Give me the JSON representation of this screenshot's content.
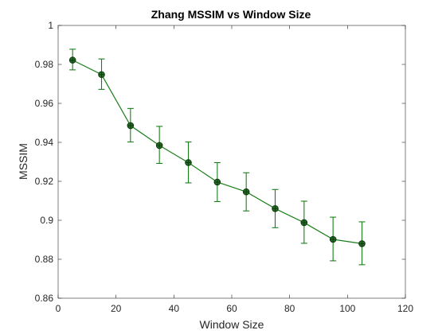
{
  "chart_data": {
    "type": "line",
    "title": "Zhang MSSIM vs Window Size",
    "xlabel": "Window Size",
    "ylabel": "MSSIM",
    "xlim": [
      0,
      120
    ],
    "ylim": [
      0.86,
      1
    ],
    "xticks": [
      0,
      20,
      40,
      60,
      80,
      100,
      120
    ],
    "yticks": [
      0.86,
      0.88,
      0.9,
      0.92,
      0.94,
      0.96,
      0.98,
      1
    ],
    "xtick_labels": [
      "0",
      "20",
      "40",
      "60",
      "80",
      "100",
      "120"
    ],
    "ytick_labels": [
      "0.86",
      "0.88",
      "0.9",
      "0.92",
      "0.94",
      "0.96",
      "0.98",
      "1"
    ],
    "grid": false,
    "series": [
      {
        "color": "#1a7f1a",
        "marker": "circle-plus",
        "error_bars": true,
        "x": [
          5,
          15,
          25,
          35,
          45,
          55,
          65,
          75,
          85,
          95,
          105
        ],
        "y": [
          0.9822,
          0.9748,
          0.9486,
          0.9384,
          0.9296,
          0.9196,
          0.9146,
          0.906,
          0.8988,
          0.8902,
          0.888
        ],
        "err_low": [
          0.9772,
          0.9672,
          0.9402,
          0.9292,
          0.9192,
          0.9096,
          0.9048,
          0.8962,
          0.8882,
          0.8792,
          0.8772
        ],
        "err_high": [
          0.9878,
          0.9828,
          0.9574,
          0.9482,
          0.9402,
          0.9296,
          0.9244,
          0.9158,
          0.9098,
          0.9016,
          0.8992
        ]
      }
    ]
  }
}
